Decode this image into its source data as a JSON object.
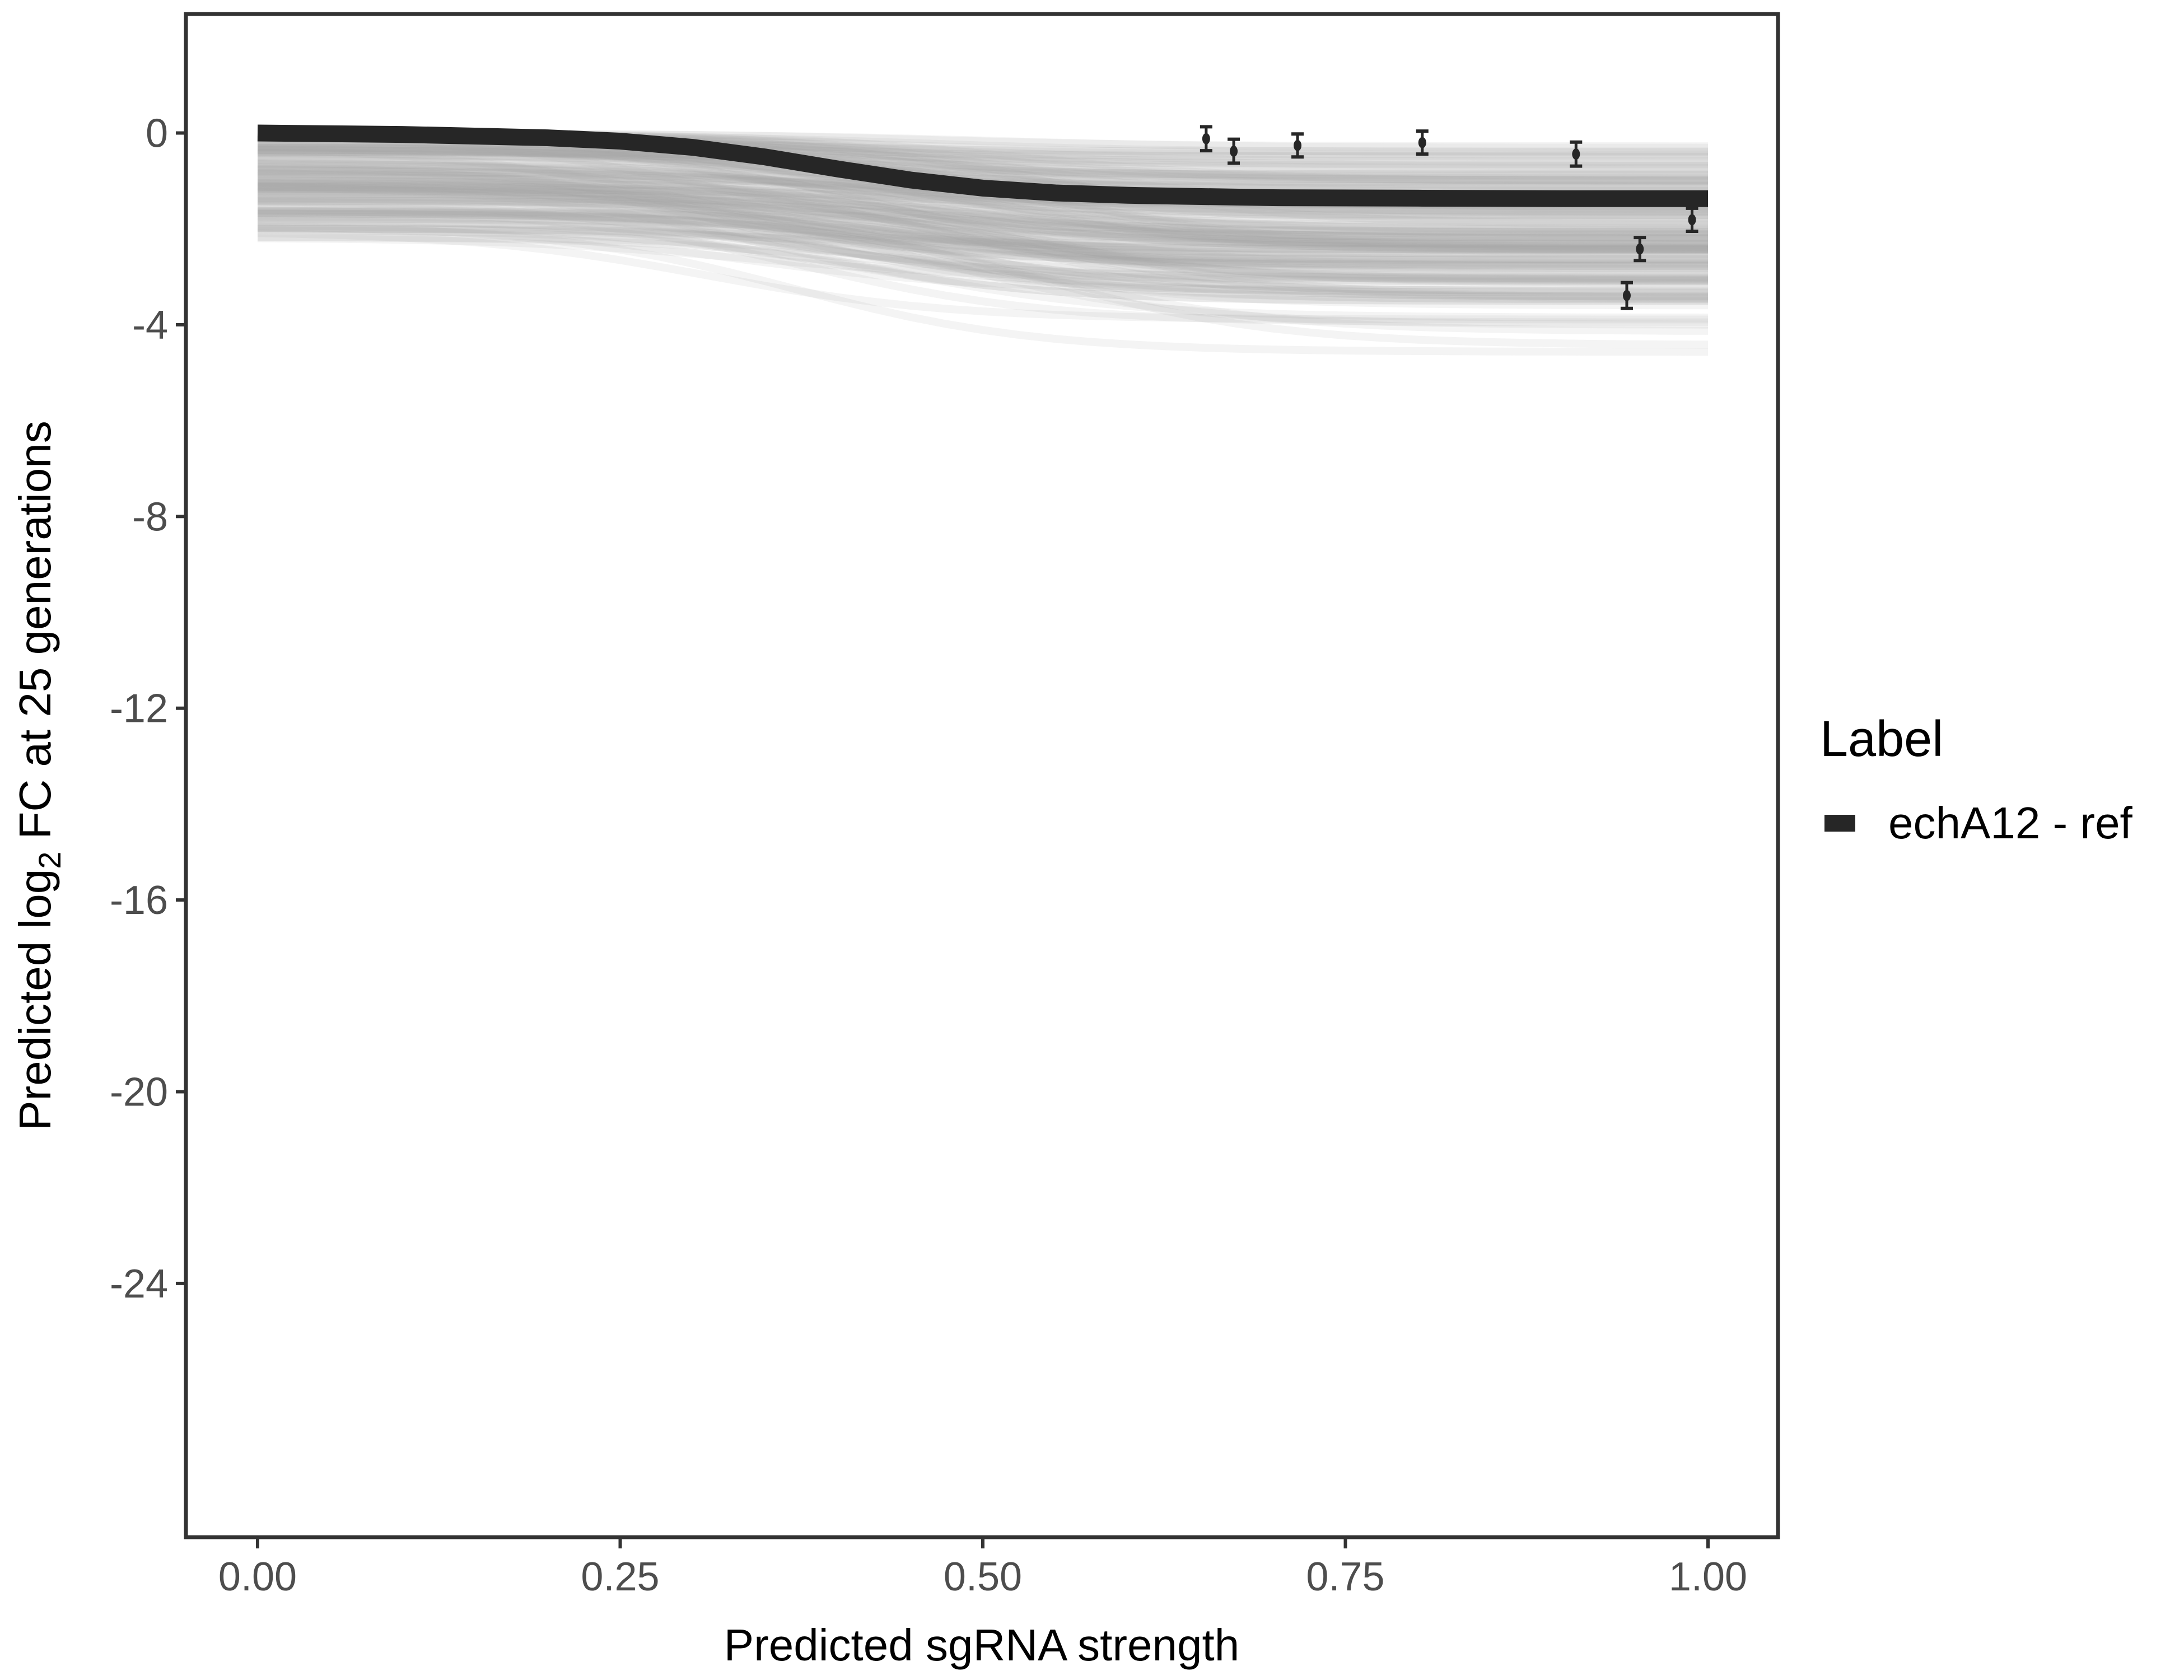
{
  "chart_data": {
    "type": "line",
    "title": "",
    "xlabel": "Predicted sgRNA strength",
    "ylabel_parts": {
      "pre": "Predicted  log",
      "sub": "2",
      "post": " FC at 25 generations"
    },
    "xlim": [
      -0.05,
      1.05
    ],
    "ylim": [
      -29.3,
      2.5
    ],
    "x_ticks": [
      0,
      0.25,
      0.5,
      0.75,
      1.0
    ],
    "x_tick_labels": [
      "0.00",
      "0.25",
      "0.50",
      "0.75",
      "1.00"
    ],
    "y_ticks": [
      0,
      -4,
      -8,
      -12,
      -16,
      -20,
      -24
    ],
    "y_tick_labels": [
      "0",
      "-4",
      "-8",
      "-12",
      "-16",
      "-20",
      "-24"
    ],
    "grid": false,
    "legend": {
      "title": "Label",
      "position": "right",
      "entries": [
        {
          "name": "echA12 - ref",
          "color": "#262626"
        }
      ]
    },
    "series": [
      {
        "name": "echA12 - ref",
        "color": "#262626",
        "x": [
          0,
          0.1,
          0.2,
          0.25,
          0.3,
          0.35,
          0.4,
          0.45,
          0.5,
          0.55,
          0.6,
          0.7,
          0.8,
          0.9,
          1.0
        ],
        "y": [
          0,
          -0.03,
          -0.1,
          -0.17,
          -0.3,
          -0.5,
          -0.75,
          -0.98,
          -1.15,
          -1.25,
          -1.3,
          -1.35,
          -1.36,
          -1.37,
          -1.37
        ]
      }
    ],
    "ensemble": {
      "color": "#a6a6a6",
      "description_visible": false
    },
    "points": {
      "color": "#262626",
      "x": [
        0.654,
        0.673,
        0.717,
        0.803,
        0.909,
        0.989,
        0.953,
        0.944
      ],
      "y": [
        -0.12,
        -0.38,
        -0.26,
        -0.2,
        -0.44,
        -1.81,
        -2.42,
        -3.39
      ],
      "err": [
        0.25,
        0.25,
        0.24,
        0.24,
        0.25,
        0.24,
        0.24,
        0.27
      ]
    }
  }
}
